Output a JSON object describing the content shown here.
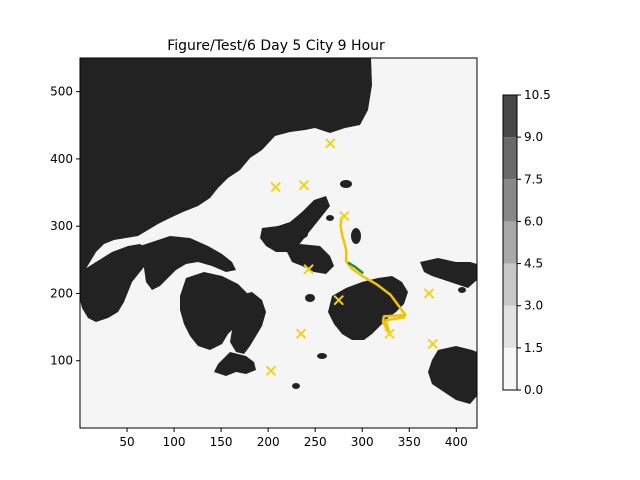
{
  "chart_data": {
    "type": "heatmap",
    "title": "Figure/Test/6 Day 5 City 9 Hour",
    "xlabel": "",
    "ylabel": "",
    "xlim": [
      0,
      422
    ],
    "ylim": [
      0,
      550
    ],
    "xticks": [
      50,
      100,
      150,
      200,
      250,
      300,
      350,
      400
    ],
    "yticks": [
      100,
      200,
      300,
      400,
      500
    ],
    "colorbar": {
      "levels": [
        0.0,
        1.5,
        3.0,
        4.5,
        6.0,
        7.5,
        9.0,
        10.5
      ],
      "level_labels": [
        "0.0",
        "1.5",
        "3.0",
        "4.5",
        "6.0",
        "7.5",
        "9.0",
        "10.5"
      ],
      "colors": [
        "#f7f7f7",
        "#e2e2e2",
        "#c8c8c8",
        "#a9a9a9",
        "#888888",
        "#6a6a6a",
        "#484848"
      ]
    },
    "land_color": "#222222",
    "sea_color": "#f5f5f5",
    "cities": {
      "marker": "x",
      "color": "#f2d31b",
      "points": [
        [
          266,
          423
        ],
        [
          208,
          358
        ],
        [
          238,
          361
        ],
        [
          281,
          315
        ],
        [
          243,
          236
        ],
        [
          275,
          190
        ],
        [
          371,
          200
        ],
        [
          235,
          140
        ],
        [
          329,
          140
        ],
        [
          375,
          125
        ],
        [
          203,
          85
        ]
      ]
    },
    "route": {
      "color": "#f2c400",
      "points": [
        [
          281,
          315
        ],
        [
          278,
          312
        ],
        [
          277,
          300
        ],
        [
          279,
          285
        ],
        [
          281,
          275
        ],
        [
          283,
          264
        ],
        [
          283,
          248
        ],
        [
          288,
          238
        ],
        [
          300,
          226
        ],
        [
          316,
          213
        ],
        [
          330,
          198
        ],
        [
          346,
          168
        ],
        [
          323,
          166
        ],
        [
          322,
          158
        ],
        [
          329,
          140
        ],
        [
          325,
          160
        ],
        [
          346,
          165
        ]
      ]
    },
    "highlight_segment": {
      "color": "#2e8b2e",
      "points": [
        [
          285,
          246
        ],
        [
          293,
          239
        ],
        [
          301,
          230
        ]
      ]
    }
  }
}
